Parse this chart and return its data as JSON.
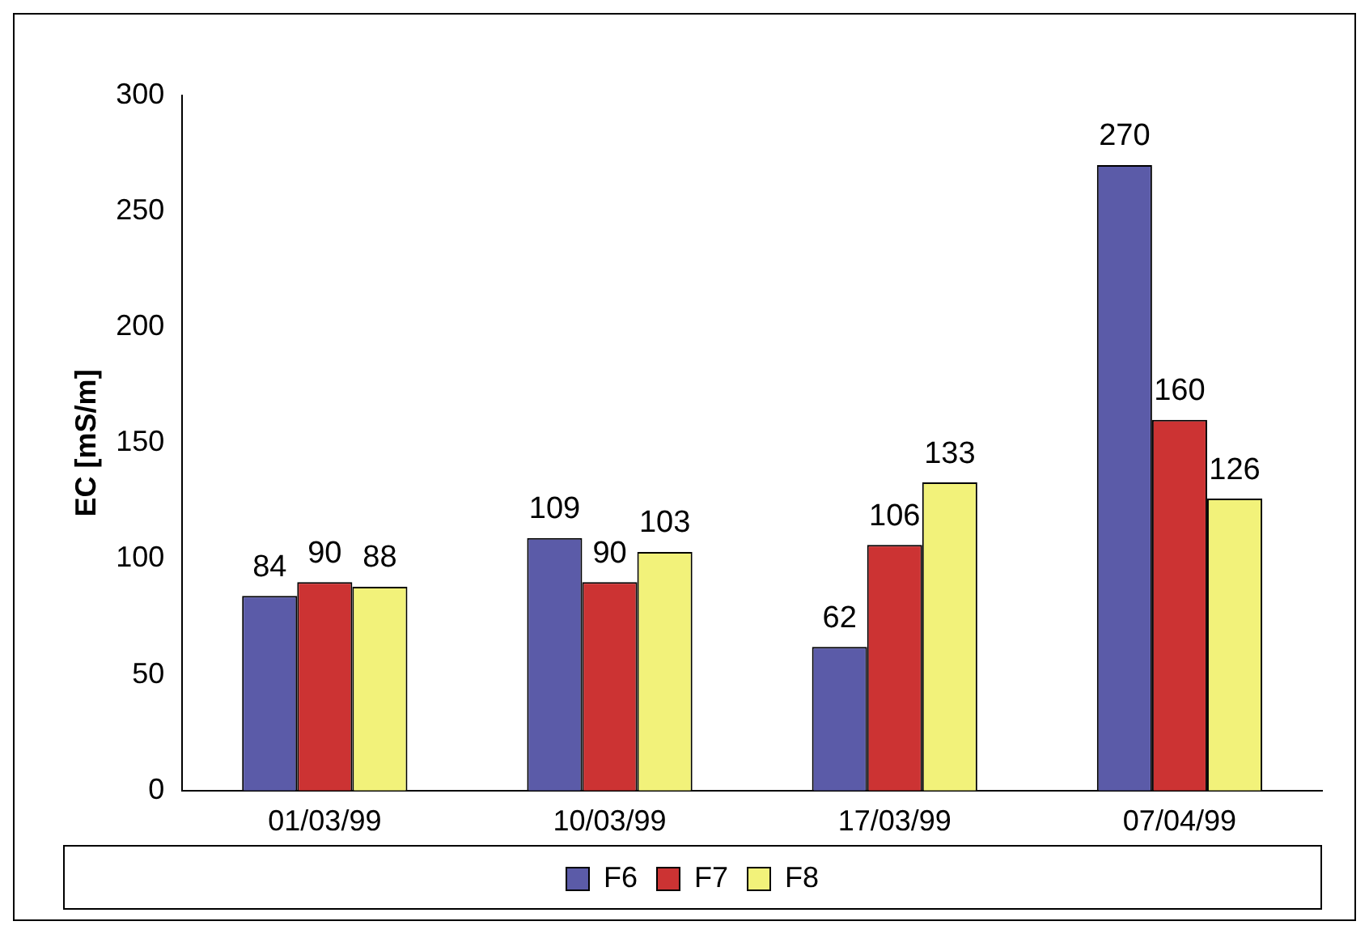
{
  "chart_data": {
    "type": "bar",
    "ylabel": "EC [mS/m]",
    "categories": [
      "01/03/99",
      "10/03/99",
      "17/03/99",
      "07/04/99"
    ],
    "series": [
      {
        "name": "F6",
        "color": "#5b5ba8",
        "values": [
          84,
          109,
          62,
          270
        ]
      },
      {
        "name": "F7",
        "color": "#cc3333",
        "values": [
          90,
          90,
          106,
          160
        ]
      },
      {
        "name": "F8",
        "color": "#f2f27a",
        "values": [
          88,
          103,
          133,
          126
        ]
      }
    ],
    "ylim": [
      0,
      300
    ],
    "yticks": [
      0,
      50,
      100,
      150,
      200,
      250,
      300
    ],
    "grid": false,
    "legend": "bottom",
    "data_labels": true
  }
}
